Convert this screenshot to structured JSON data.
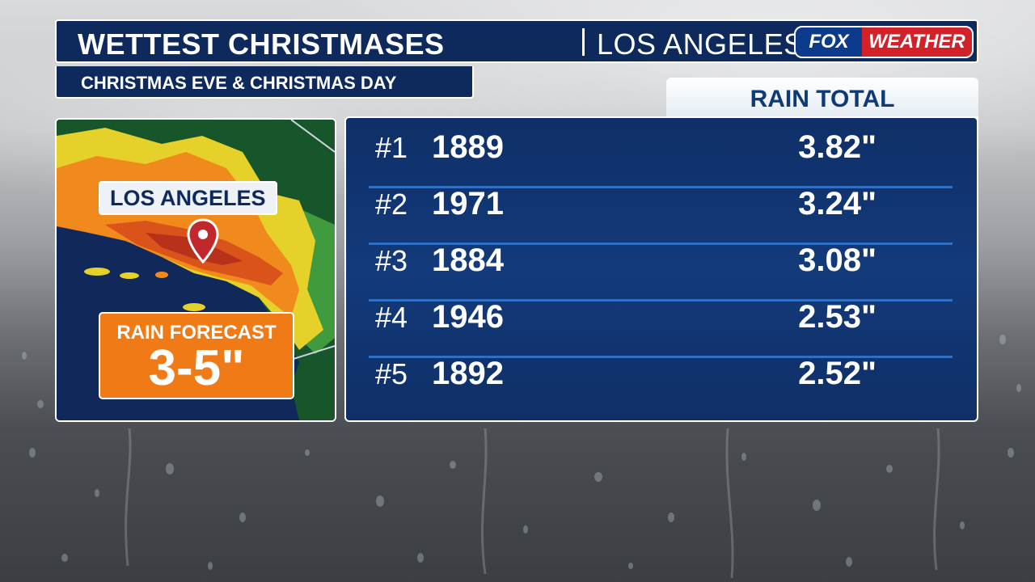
{
  "header": {
    "title": "WETTEST CHRISTMASES",
    "location": "LOS ANGELES",
    "subtitle": "CHRISTMAS EVE & CHRISTMAS DAY"
  },
  "logo": {
    "part1": "FOX",
    "part2": "WEATHER"
  },
  "map": {
    "city_label": "LOS ANGELES",
    "forecast_label": "RAIN FORECAST",
    "forecast_value": "3-5\""
  },
  "table": {
    "column_header": "RAIN TOTAL",
    "rows": [
      {
        "rank": "#1",
        "year": "1889",
        "total": "3.82\""
      },
      {
        "rank": "#2",
        "year": "1971",
        "total": "3.24\""
      },
      {
        "rank": "#3",
        "year": "1884",
        "total": "3.08\""
      },
      {
        "rank": "#4",
        "year": "1946",
        "total": "2.53\""
      },
      {
        "rank": "#5",
        "year": "1892",
        "total": "2.52\""
      }
    ]
  },
  "colors": {
    "navy": "#0e2a5c",
    "accent_blue": "#2f6fc4",
    "forecast_orange": "#ef7a16",
    "fox_blue": "#0d3b8c",
    "weather_red": "#d32129",
    "pin_red": "#c0282d"
  }
}
